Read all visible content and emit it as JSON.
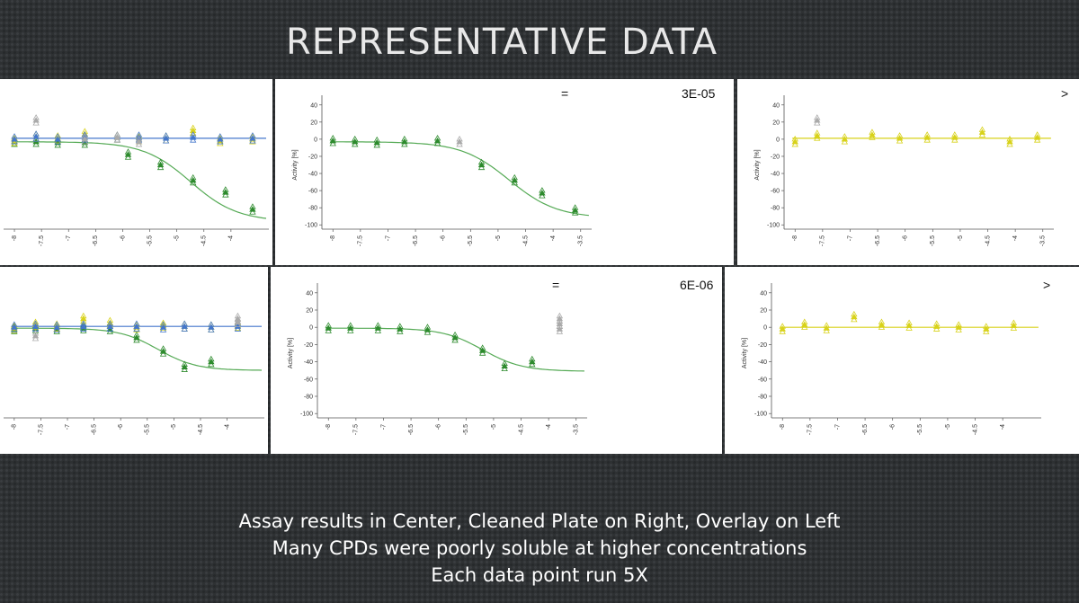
{
  "slide": {
    "title": "REPRESENTATIVE DATA",
    "caption_lines": [
      "Assay results in Center, Cleaned Plate on Right, Overlay on Left",
      "Many CPDs were poorly soluble at higher concentrations",
      "Each data point run 5X"
    ]
  },
  "annotations": {
    "row1_relation": "=",
    "row1_value": "3E-05",
    "row1_right_relation": ">",
    "row2_relation": "=",
    "row2_value": "6E-06",
    "row2_right_relation": ">"
  },
  "colors": {
    "green": "#2e8b2e",
    "dark_green": "#1f6e1f",
    "yellow": "#d8d21a",
    "blue": "#4477cc",
    "gray": "#aaaaaa",
    "curve_green": "#55aa55"
  },
  "chart_data": [
    {
      "id": "r1-left",
      "type": "scatter",
      "title": "",
      "xlabel": "",
      "ylabel": "",
      "xlim": [
        -8.2,
        -3.3
      ],
      "ylim": [
        -105,
        45
      ],
      "show_axes": false,
      "xticks": [
        -8,
        -7.5,
        -7,
        -6.5,
        -6,
        -5.5,
        -5,
        -4.5,
        -4
      ],
      "yticks": [],
      "series": [
        {
          "color": "#2e8b2e",
          "marker": "triangle",
          "x": [
            -8,
            -7.6,
            -7.2,
            -6.7,
            -5.9,
            -5.3,
            -4.7,
            -4.1,
            -3.6
          ],
          "y": [
            -3,
            -3,
            -4,
            -4,
            -18,
            -30,
            -48,
            -62,
            -82
          ]
        },
        {
          "color": "#d8d21a",
          "marker": "triangle",
          "x": [
            -8,
            -7.6,
            -7.2,
            -6.7,
            -6.1,
            -5.7,
            -5.2,
            -4.7,
            -4.2,
            -3.6
          ],
          "y": [
            -2,
            3,
            1,
            6,
            2,
            0,
            1,
            10,
            -2,
            0
          ]
        },
        {
          "color": "#4477cc",
          "marker": "triangle",
          "x": [
            -8,
            -7.6,
            -7.2,
            -6.7,
            -6.1,
            -5.7,
            -5.2,
            -4.7,
            -4.2,
            -3.6
          ],
          "y": [
            0,
            3,
            0,
            2,
            2,
            2,
            1,
            2,
            0,
            1
          ]
        },
        {
          "color": "#aaaaaa",
          "marker": "triangle",
          "x": [
            -7.6,
            -6.7,
            -6.1,
            -5.7
          ],
          "y": [
            22,
            0,
            2,
            -3
          ]
        }
      ],
      "curves": [
        {
          "color": "#55aa55",
          "bottom": -3,
          "top": -96,
          "ec50_log": -4.75,
          "hill": 1.0
        },
        {
          "color": "#4477cc",
          "bottom": 1,
          "top": 1,
          "ec50_log": -5,
          "hill": 1.0
        }
      ]
    },
    {
      "id": "r1-center",
      "type": "scatter",
      "title": "",
      "xlabel": "",
      "ylabel": "Activity [%]",
      "xlim": [
        -8.2,
        -3.3
      ],
      "ylim": [
        -105,
        45
      ],
      "show_axes": true,
      "xticks": [
        -8,
        -7.5,
        -7,
        -6.5,
        -6,
        -5.5,
        -5,
        -4.5,
        -4,
        -3.5
      ],
      "yticks": [
        40,
        20,
        0,
        -20,
        -40,
        -60,
        -80,
        -100
      ],
      "series": [
        {
          "color": "#2e8b2e",
          "marker": "triangle",
          "x": [
            -8,
            -7.6,
            -7.2,
            -6.7,
            -6.1,
            -5.3,
            -4.7,
            -4.2,
            -3.6
          ],
          "y": [
            -2,
            -3,
            -4,
            -3,
            -2,
            -30,
            -48,
            -63,
            -83
          ]
        },
        {
          "color": "#aaaaaa",
          "marker": "triangle",
          "x": [
            -5.7
          ],
          "y": [
            -3
          ]
        }
      ],
      "curves": [
        {
          "color": "#55aa55",
          "bottom": -3,
          "top": -92,
          "ec50_log": -4.8,
          "hill": 1.0
        }
      ]
    },
    {
      "id": "r1-right",
      "type": "scatter",
      "title": "",
      "xlabel": "",
      "ylabel": "Activity [%]",
      "xlim": [
        -8.2,
        -3.3
      ],
      "ylim": [
        -105,
        45
      ],
      "show_axes": true,
      "xticks": [
        -8,
        -7.5,
        -7,
        -6.5,
        -6,
        -5.5,
        -5,
        -4.5,
        -4,
        -3.5
      ],
      "yticks": [
        40,
        20,
        0,
        -20,
        -40,
        -60,
        -80,
        -100
      ],
      "series": [
        {
          "color": "#d8d21a",
          "marker": "triangle",
          "x": [
            -8,
            -7.6,
            -7.1,
            -6.6,
            -6.1,
            -5.6,
            -5.1,
            -4.6,
            -4.1,
            -3.6
          ],
          "y": [
            -3,
            4,
            0,
            5,
            1,
            2,
            2,
            8,
            -3,
            2
          ]
        },
        {
          "color": "#aaaaaa",
          "marker": "triangle",
          "x": [
            -7.6
          ],
          "y": [
            22
          ]
        }
      ],
      "curves": [
        {
          "color": "#d8d21a",
          "bottom": 1,
          "top": 1,
          "ec50_log": -5,
          "hill": 1.0
        }
      ]
    },
    {
      "id": "r2-left",
      "type": "scatter",
      "title": "",
      "xlabel": "",
      "ylabel": "",
      "xlim": [
        -8.2,
        -3.3
      ],
      "ylim": [
        -105,
        45
      ],
      "show_axes": false,
      "xticks": [
        -8,
        -7.5,
        -7,
        -6.5,
        -6,
        -5.5,
        -5,
        -4.5,
        -4
      ],
      "yticks": [],
      "series": [
        {
          "color": "#2e8b2e",
          "marker": "triangle",
          "x": [
            -8,
            -7.6,
            -7.2,
            -6.7,
            -6.2,
            -5.7,
            -5.2,
            -4.8,
            -4.3
          ],
          "y": [
            -2,
            -1,
            -2,
            -1,
            -2,
            -12,
            -28,
            -46,
            -40
          ]
        },
        {
          "color": "#d8d21a",
          "marker": "triangle",
          "x": [
            -8,
            -7.6,
            -7.2,
            -6.7,
            -6.2,
            -5.7,
            -5.2,
            -4.8,
            -4.3,
            -3.8
          ],
          "y": [
            -1,
            3,
            1,
            10,
            5,
            0,
            2,
            1,
            0,
            2
          ]
        },
        {
          "color": "#4477cc",
          "marker": "triangle",
          "x": [
            -8,
            -7.6,
            -7.2,
            -6.7,
            -6.2,
            -5.7,
            -5.2,
            -4.8,
            -4.3,
            -3.8
          ],
          "y": [
            0,
            1,
            0,
            1,
            1,
            1,
            0,
            1,
            0,
            1
          ]
        },
        {
          "color": "#aaaaaa",
          "marker": "triangle",
          "x": [
            -7.6,
            -3.8,
            -3.8
          ],
          "y": [
            -10,
            10,
            6
          ]
        }
      ],
      "curves": [
        {
          "color": "#55aa55",
          "bottom": -1,
          "top": -50,
          "ec50_log": -5.3,
          "hill": 1.2
        },
        {
          "color": "#4477cc",
          "bottom": 1,
          "top": 1,
          "ec50_log": -5,
          "hill": 1.0
        }
      ]
    },
    {
      "id": "r2-center",
      "type": "scatter",
      "title": "",
      "xlabel": "",
      "ylabel": "Activity [%]",
      "xlim": [
        -8.2,
        -3.3
      ],
      "ylim": [
        -105,
        45
      ],
      "show_axes": true,
      "xticks": [
        -8,
        -7.5,
        -7,
        -6.5,
        -6,
        -5.5,
        -5,
        -4.5,
        -4,
        -3.5
      ],
      "yticks": [
        40,
        20,
        0,
        -20,
        -40,
        -60,
        -80,
        -100
      ],
      "series": [
        {
          "color": "#2e8b2e",
          "marker": "triangle",
          "x": [
            -8,
            -7.6,
            -7.1,
            -6.7,
            -6.2,
            -5.7,
            -5.2,
            -4.8,
            -4.3
          ],
          "y": [
            -1,
            -1,
            -1,
            -2,
            -3,
            -12,
            -27,
            -45,
            -40
          ]
        },
        {
          "color": "#aaaaaa",
          "marker": "triangle",
          "x": [
            -3.8,
            -3.8,
            -3.8
          ],
          "y": [
            10,
            4,
            -2
          ]
        }
      ],
      "curves": [
        {
          "color": "#55aa55",
          "bottom": -1,
          "top": -51,
          "ec50_log": -5.2,
          "hill": 1.2
        }
      ]
    },
    {
      "id": "r2-right",
      "type": "scatter",
      "title": "",
      "xlabel": "",
      "ylabel": "Activity [%]",
      "xlim": [
        -8.2,
        -3.3
      ],
      "ylim": [
        -105,
        45
      ],
      "show_axes": true,
      "xticks": [
        -8,
        -7.5,
        -7,
        -6.5,
        -6,
        -5.5,
        -5,
        -4.5,
        -4
      ],
      "yticks": [
        40,
        20,
        0,
        -20,
        -40,
        -60,
        -80,
        -100
      ],
      "series": [
        {
          "color": "#d8d21a",
          "marker": "triangle",
          "x": [
            -8,
            -7.6,
            -7.2,
            -6.7,
            -6.2,
            -5.7,
            -5.2,
            -4.8,
            -4.3,
            -3.8
          ],
          "y": [
            -2,
            3,
            -1,
            12,
            3,
            2,
            1,
            0,
            -2,
            2
          ]
        }
      ],
      "curves": [
        {
          "color": "#d8d21a",
          "bottom": 0,
          "top": 0,
          "ec50_log": -5,
          "hill": 1.0
        }
      ]
    }
  ]
}
